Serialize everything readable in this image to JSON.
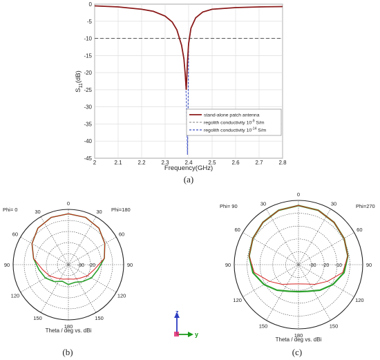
{
  "captions": {
    "a": "(a)",
    "b": "(b)",
    "c": "(c)"
  },
  "colors": {
    "series1": "#8b1a1a",
    "series2": "#9a9a9a",
    "series3": "#3b4fc4",
    "polar_green": "#2ca02c",
    "polar_red": "#d62020",
    "axis_z": "#2b3bbf",
    "axis_y": "#1a9a1a"
  },
  "chart_data": [
    {
      "type": "line",
      "xlabel": "Frequency(GHz)",
      "ylabel": "S11(dB)",
      "ylabel_main": "S",
      "ylabel_sub": "11",
      "ylabel_unit": "(dB)",
      "xlim": [
        2,
        2.8
      ],
      "ylim": [
        -45,
        0
      ],
      "xticks": [
        "2",
        "2.1",
        "2.2",
        "2.3",
        "2.4",
        "2.5",
        "2.6",
        "2.7",
        "2.8"
      ],
      "yticks": [
        "0",
        "-5",
        "-10",
        "-15",
        "-20",
        "-25",
        "-30",
        "-35",
        "-40",
        "-45"
      ],
      "grid": true,
      "reference_line_db": -10,
      "legend_position": "bottom-right",
      "series": [
        {
          "name": "stand-alone patch antenna",
          "style": "solid",
          "x": [
            2.0,
            2.1,
            2.2,
            2.25,
            2.3,
            2.33,
            2.35,
            2.37,
            2.38,
            2.385,
            2.39,
            2.395,
            2.4,
            2.41,
            2.43,
            2.46,
            2.5,
            2.6,
            2.7,
            2.8
          ],
          "y": [
            -0.5,
            -0.8,
            -1.5,
            -2.1,
            -3.5,
            -5.2,
            -7.5,
            -12,
            -16,
            -20,
            -25,
            -17,
            -11.5,
            -7,
            -4,
            -2.3,
            -1.5,
            -1.0,
            -0.8,
            -0.7
          ]
        },
        {
          "name": "regolith conductivity 10^-9 S/m",
          "name_prefix": "regolith conductivity 10",
          "name_exp": "-9",
          "name_suffix": " S/m",
          "style": "dashed",
          "x": [
            2.0,
            2.1,
            2.2,
            2.25,
            2.3,
            2.33,
            2.35,
            2.37,
            2.38,
            2.385,
            2.39,
            2.395,
            2.4,
            2.41,
            2.43,
            2.46,
            2.5,
            2.6,
            2.7,
            2.8
          ],
          "y": [
            -0.5,
            -0.8,
            -1.5,
            -2.1,
            -3.5,
            -5.2,
            -7.5,
            -12,
            -16,
            -20,
            -25,
            -17,
            -11.5,
            -7,
            -4,
            -2.3,
            -1.5,
            -1.0,
            -0.8,
            -0.7
          ]
        },
        {
          "name": "regolith conductivity 10^-14 S/m",
          "name_prefix": "regolith conductivity 10",
          "name_exp": "-14",
          "name_suffix": " S/m",
          "style": "dashed",
          "x": [
            2.0,
            2.1,
            2.2,
            2.25,
            2.3,
            2.33,
            2.35,
            2.37,
            2.38,
            2.385,
            2.39,
            2.393,
            2.395,
            2.398,
            2.4,
            2.41,
            2.43,
            2.46,
            2.5,
            2.6,
            2.7,
            2.8
          ],
          "y": [
            -0.5,
            -0.8,
            -1.5,
            -2.1,
            -3.5,
            -5.2,
            -7.5,
            -12,
            -16,
            -20,
            -27,
            -36,
            -44,
            -30,
            -12,
            -7,
            -4,
            -2.3,
            -1.5,
            -1.0,
            -0.8,
            -0.7
          ]
        }
      ]
    },
    {
      "type": "polar",
      "xlabel": "Theta / deg vs. dBi",
      "left_label": "Phi=  0",
      "right_label": "Phi=180",
      "angle_labels": [
        "0",
        "30",
        "60",
        "90",
        "120",
        "150",
        "180",
        "150",
        "120",
        "90",
        "60",
        "30"
      ],
      "ring_labels": [
        "-30",
        "-20"
      ],
      "ring_db": [
        -30,
        -20,
        -10,
        0
      ],
      "series": [
        {
          "color": "green",
          "theta_deg": [
            0,
            20,
            40,
            60,
            80,
            100,
            120,
            140,
            160,
            180,
            200,
            220,
            240,
            260,
            280,
            300,
            320,
            340
          ],
          "gain_dbi": [
            6,
            5.5,
            3,
            -2,
            -7,
            -13,
            -16,
            -20,
            -23,
            -22,
            -24,
            -20,
            -16,
            -13,
            -8,
            -2,
            3,
            5.5
          ]
        },
        {
          "color": "red",
          "theta_deg": [
            0,
            20,
            40,
            60,
            80,
            100,
            120,
            140,
            160,
            180,
            200,
            220,
            240,
            260,
            280,
            300,
            320,
            340
          ],
          "gain_dbi": [
            6,
            5.5,
            3,
            -2,
            -7,
            -16,
            -20,
            -24,
            -26,
            -27,
            -26,
            -24,
            -20,
            -16,
            -8,
            -2,
            3,
            5.5
          ]
        }
      ]
    },
    {
      "type": "polar",
      "xlabel": "Theta / deg vs. dBi",
      "left_label": "Phi= 90",
      "right_label": "Phi=270",
      "angle_labels": [
        "0",
        "30",
        "60",
        "90",
        "120",
        "150",
        "180",
        "150",
        "120",
        "90",
        "60",
        "30"
      ],
      "ring_labels": [
        "-30",
        "-20",
        "-10"
      ],
      "ring_db": [
        -30,
        -20,
        -10,
        0
      ],
      "series": [
        {
          "color": "green",
          "theta_deg": [
            0,
            20,
            40,
            60,
            80,
            100,
            120,
            140,
            160,
            180,
            200,
            220,
            240,
            260,
            280,
            300,
            320,
            340
          ],
          "gain_dbi": [
            6,
            5,
            3,
            1,
            -1,
            -4,
            -9,
            -14,
            -18,
            -19,
            -18,
            -14,
            -9,
            -4,
            -1,
            1,
            3,
            5
          ]
        },
        {
          "color": "red",
          "theta_deg": [
            0,
            20,
            40,
            60,
            80,
            100,
            120,
            140,
            160,
            180,
            200,
            220,
            240,
            260,
            280,
            300,
            320,
            340
          ],
          "gain_dbi": [
            6,
            5,
            3,
            1,
            -1,
            -5,
            -14,
            -20,
            -24,
            -25,
            -24,
            -20,
            -14,
            -5,
            -1,
            1,
            3,
            5
          ]
        }
      ]
    }
  ],
  "axes_icon": {
    "z_label": "z",
    "y_label": "y"
  }
}
